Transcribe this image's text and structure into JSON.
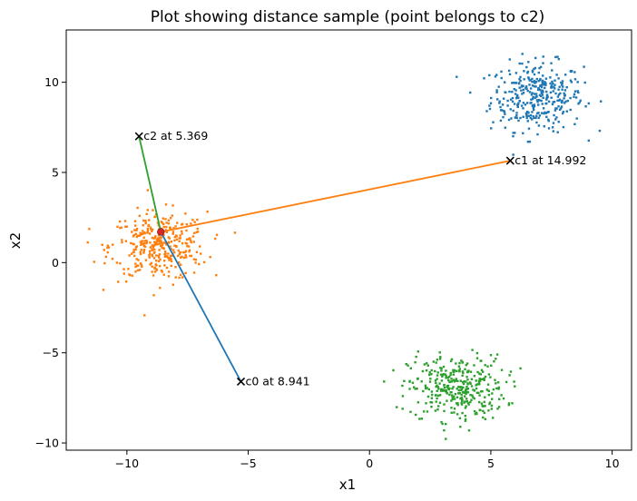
{
  "chart_data": {
    "type": "scatter",
    "title": "Plot showing distance sample (point belongs to c2)",
    "xlabel": "x1",
    "ylabel": "x2",
    "xlim": [
      -12.5,
      10.8
    ],
    "ylim": [
      -10.4,
      12.9
    ],
    "xticks": [
      -10,
      -5,
      0,
      5,
      10
    ],
    "yticks": [
      -10,
      -5,
      0,
      5,
      10
    ],
    "xtick_labels": [
      "−10",
      "−5",
      "0",
      "5",
      "10"
    ],
    "ytick_labels": [
      "−10",
      "−5",
      "0",
      "5",
      "10"
    ],
    "grid": false,
    "clusters": [
      {
        "color": "#1f77b4",
        "center": [
          6.9,
          9.2
        ],
        "spread": [
          0.95,
          0.95
        ],
        "count": 350
      },
      {
        "color": "#ff7f0e",
        "center": [
          -8.7,
          0.9
        ],
        "spread": [
          1.0,
          0.95
        ],
        "count": 350
      },
      {
        "color": "#2ca02c",
        "center": [
          3.6,
          -6.95
        ],
        "spread": [
          1.0,
          0.9
        ],
        "count": 350
      }
    ],
    "sample_point": {
      "x": -8.6,
      "y": 1.7,
      "color": "#d62728"
    },
    "centroids": [
      {
        "name": "c0",
        "x": -5.3,
        "y": -6.6,
        "line_color": "#1f77b4",
        "label": "c0 at 8.941"
      },
      {
        "name": "c1",
        "x": 5.8,
        "y": 5.65,
        "line_color": "#ff7f0e",
        "label": "c1 at 14.992"
      },
      {
        "name": "c2",
        "x": -9.5,
        "y": 7.0,
        "line_color": "#2ca02c",
        "label": "c2 at 5.369"
      }
    ]
  }
}
